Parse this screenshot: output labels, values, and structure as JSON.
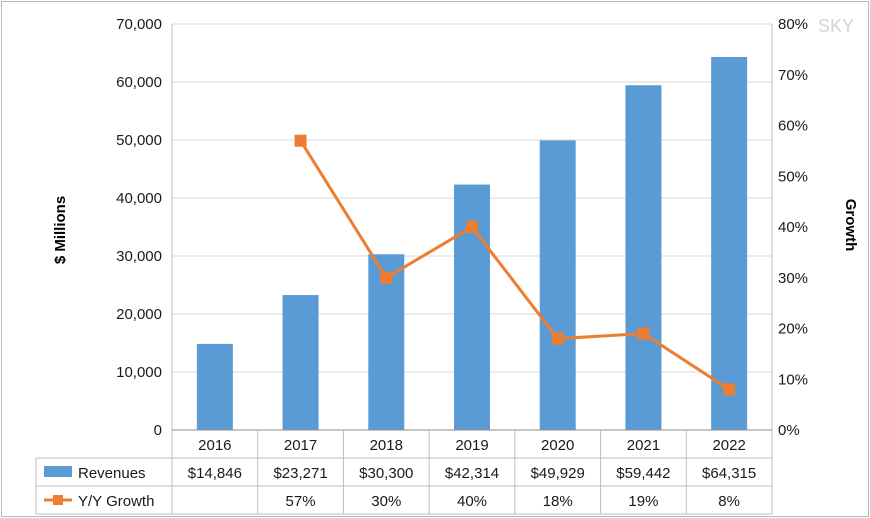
{
  "watermark": "SKY",
  "chart_data": {
    "type": "bar",
    "categories": [
      "2016",
      "2017",
      "2018",
      "2019",
      "2020",
      "2021",
      "2022"
    ],
    "series": [
      {
        "name": "Revenues",
        "type": "bar",
        "axis": "left",
        "values": [
          14846,
          23271,
          30300,
          42314,
          49929,
          59442,
          64315
        ],
        "labels": [
          "$14,846",
          "$23,271",
          "$30,300",
          "$42,314",
          "$49,929",
          "$59,442",
          "$64,315"
        ],
        "color": "#5b9bd5"
      },
      {
        "name": "Y/Y Growth",
        "type": "line",
        "axis": "right",
        "values": [
          null,
          57,
          30,
          40,
          18,
          19,
          8
        ],
        "labels": [
          "",
          "57%",
          "30%",
          "40%",
          "18%",
          "19%",
          "8%"
        ],
        "color": "#ed7d31"
      }
    ],
    "ylabel": "$ Millions",
    "y2label": "Growth",
    "ylim": [
      0,
      70000
    ],
    "y2lim": [
      0,
      80
    ],
    "yticks": [
      "0",
      "10,000",
      "20,000",
      "30,000",
      "40,000",
      "50,000",
      "60,000",
      "70,000"
    ],
    "y2ticks": [
      "0%",
      "10%",
      "20%",
      "30%",
      "40%",
      "50%",
      "60%",
      "70%",
      "80%"
    ],
    "grid": true,
    "legend": "data-table"
  }
}
